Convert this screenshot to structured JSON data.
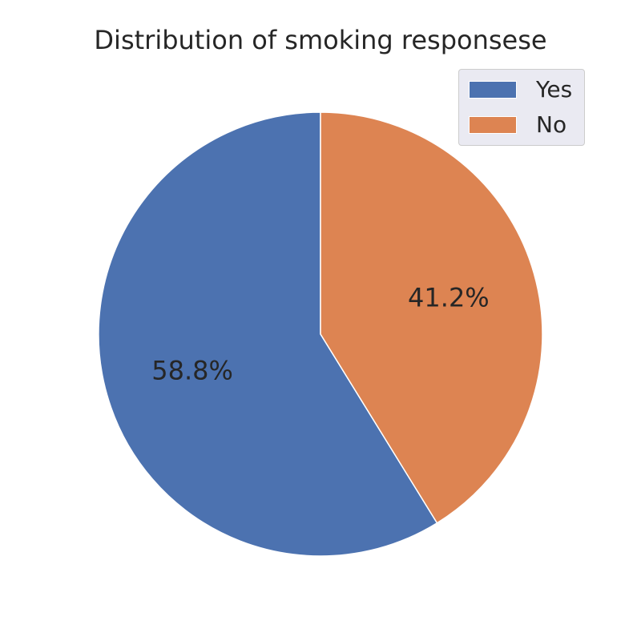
{
  "chart_data": {
    "type": "pie",
    "title": "Distribution of smoking responsese",
    "labels": [
      "Yes",
      "No"
    ],
    "values": [
      58.8,
      41.2
    ],
    "autopct_labels": [
      "58.8%",
      "41.2%"
    ],
    "colors": [
      "#4c72b0",
      "#dd8452"
    ],
    "start_angle_deg": 90,
    "direction": "counterclockwise",
    "legend": {
      "placement": "top-right",
      "entries": [
        "Yes",
        "No"
      ]
    }
  }
}
